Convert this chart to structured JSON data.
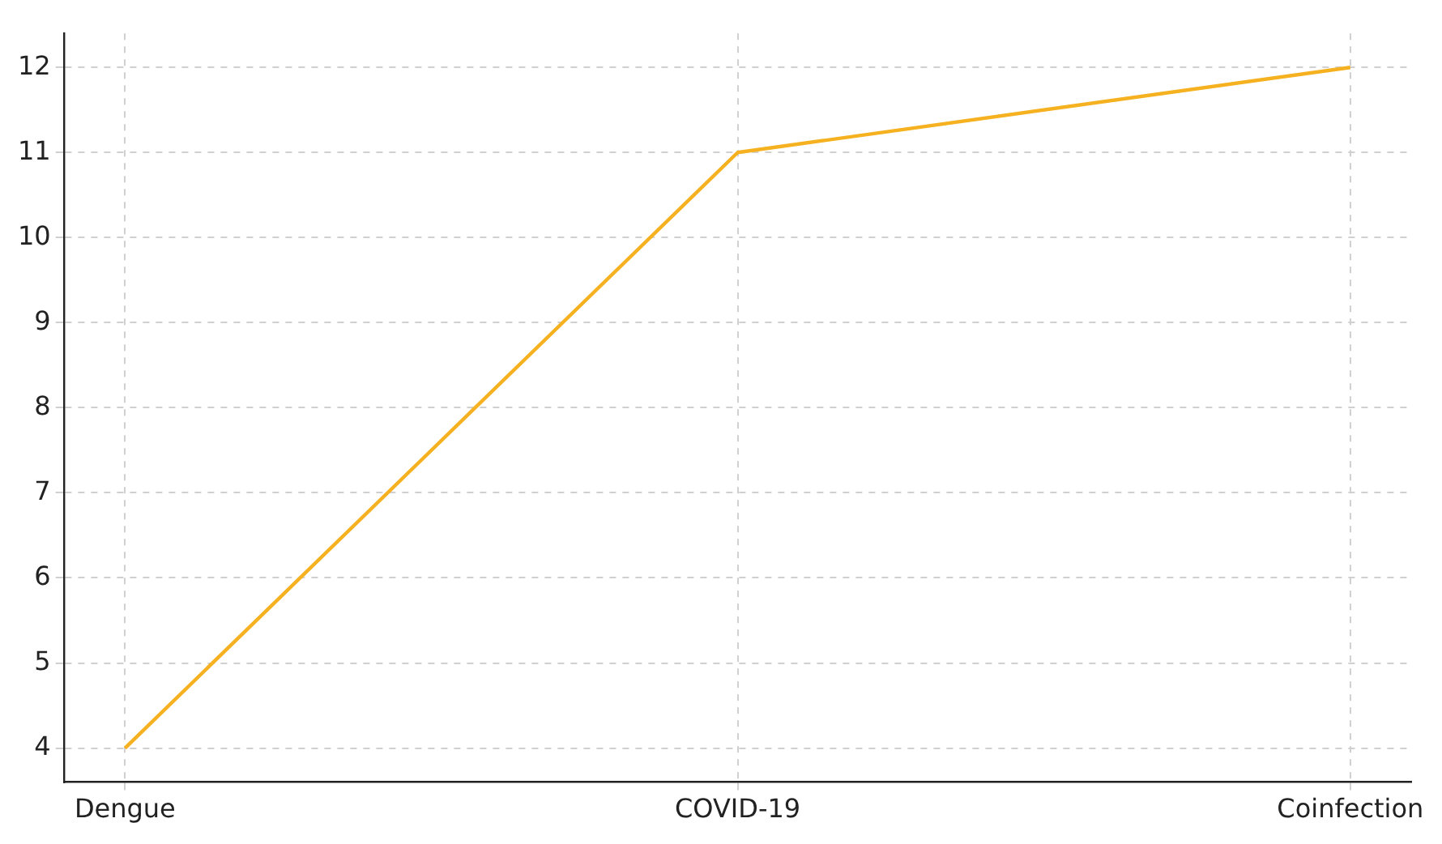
{
  "chart_data": {
    "type": "line",
    "categories": [
      "Dengue",
      "COVID-19",
      "Coinfection"
    ],
    "series": [
      {
        "color": "#f5b120",
        "values": [
          4,
          11,
          12
        ]
      }
    ],
    "ylim": [
      3.6,
      12.4
    ],
    "yticks": [
      4,
      5,
      6,
      7,
      8,
      9,
      10,
      11,
      12
    ],
    "grid": true,
    "legend": false,
    "marker": "none",
    "line_style": "solid"
  }
}
